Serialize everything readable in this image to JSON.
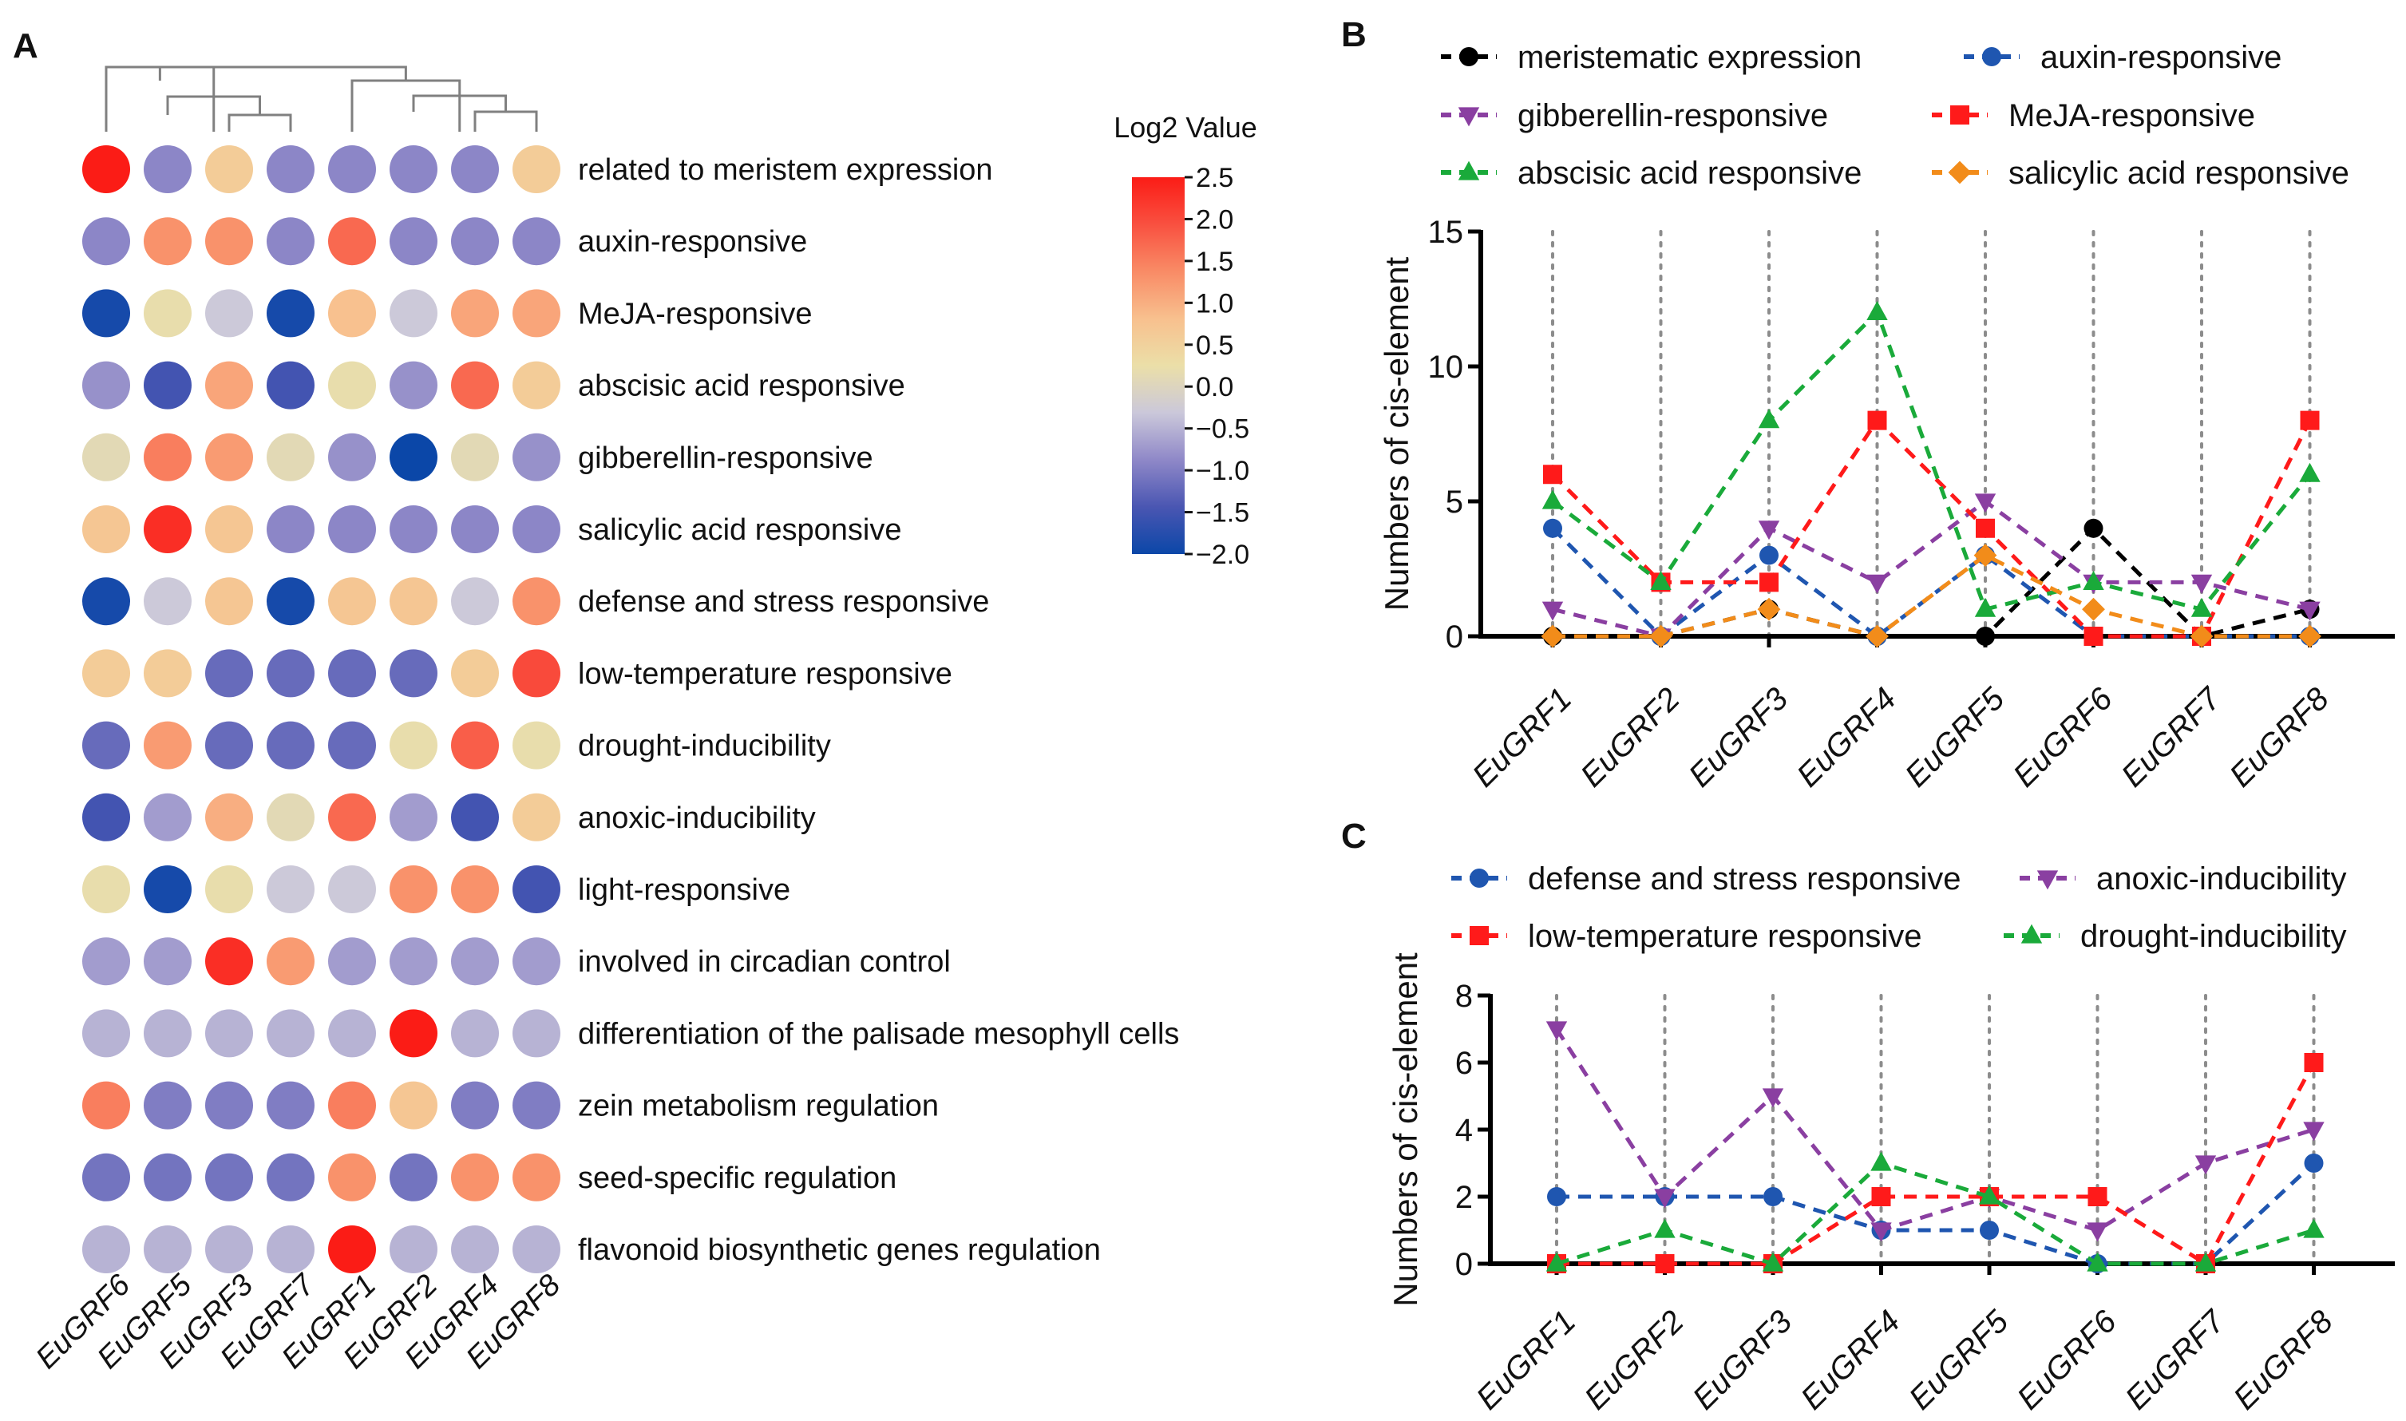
{
  "panels": {
    "a": "A",
    "b": "B",
    "c": "C"
  },
  "chart_data": [
    {
      "type": "heatmap",
      "title": "",
      "columns": [
        "EuGRF6",
        "EuGRF5",
        "EuGRF3",
        "EuGRF7",
        "EuGRF1",
        "EuGRF2",
        "EuGRF4",
        "EuGRF8"
      ],
      "rows": [
        "related to meristem expression",
        "auxin-responsive",
        "MeJA-responsive",
        "abscisic acid responsive",
        "gibberellin-responsive",
        "salicylic acid responsive",
        "defense and stress responsive",
        "low-temperature responsive",
        "drought-inducibility",
        "anoxic-inducibility",
        "light-responsive",
        "involved in circadian control",
        "differentiation of the palisade mesophyll cells",
        "zein metabolism regulation",
        "seed-specific regulation",
        "flavonoid biosynthetic genes regulation"
      ],
      "values": [
        [
          2.5,
          -0.9,
          0.6,
          -0.9,
          -0.9,
          -0.9,
          -0.9,
          0.6
        ],
        [
          -0.9,
          1.3,
          1.3,
          -0.9,
          1.7,
          -0.9,
          -0.9,
          -0.9
        ],
        [
          -1.9,
          0.2,
          -0.3,
          -1.9,
          0.8,
          -0.3,
          1.1,
          1.1
        ],
        [
          -0.8,
          -1.5,
          1.1,
          -1.5,
          0.2,
          -0.8,
          1.7,
          0.6
        ],
        [
          0.1,
          1.5,
          1.2,
          0.1,
          -0.8,
          -2.0,
          0.1,
          -0.8
        ],
        [
          0.7,
          2.3,
          0.7,
          -0.9,
          -0.9,
          -0.9,
          -0.9,
          -0.9
        ],
        [
          -1.9,
          -0.3,
          0.7,
          -1.9,
          0.7,
          0.7,
          -0.3,
          1.3
        ],
        [
          0.6,
          0.6,
          -1.2,
          -1.2,
          -1.2,
          -1.2,
          0.6,
          2.0
        ],
        [
          -1.2,
          1.2,
          -1.2,
          -1.2,
          -1.2,
          0.2,
          1.8,
          0.2
        ],
        [
          -1.5,
          -0.7,
          1.0,
          0.1,
          1.7,
          -0.7,
          -1.5,
          0.6
        ],
        [
          0.2,
          -1.9,
          0.2,
          -0.3,
          -0.3,
          1.3,
          1.3,
          -1.5
        ],
        [
          -0.7,
          -0.7,
          2.3,
          1.2,
          -0.7,
          -0.7,
          -0.7,
          -0.7
        ],
        [
          -0.5,
          -0.5,
          -0.5,
          -0.5,
          -0.5,
          2.5,
          -0.5,
          -0.5
        ],
        [
          1.5,
          -1.0,
          -1.0,
          -1.0,
          1.5,
          0.7,
          -1.0,
          -1.0
        ],
        [
          -1.1,
          -1.1,
          -1.1,
          -1.1,
          1.3,
          -1.1,
          1.3,
          1.3
        ],
        [
          -0.5,
          -0.5,
          -0.5,
          -0.5,
          2.5,
          -0.5,
          -0.5,
          -0.5
        ]
      ],
      "colorbar": {
        "title": "Log2 Value",
        "min": -2.0,
        "max": 2.5,
        "ticks": [
          "2.5",
          "2.0",
          "1.5",
          "1.0",
          "0.5",
          "0.0",
          "−0.5",
          "−1.0",
          "−1.5",
          "−2.0"
        ],
        "colors": [
          "#0b47a8",
          "#4a56b2",
          "#8f88c8",
          "#cbc8da",
          "#ebdfa8",
          "#f8c08e",
          "#f98b66",
          "#f95040",
          "#fb1c16"
        ]
      },
      "dendrogram": "hierarchical clustering tree over the 8 columns"
    },
    {
      "type": "line",
      "title": "",
      "ylabel": "Numbers of cis-element",
      "xlabel": "",
      "ylim": [
        0,
        15
      ],
      "yticks": [
        0,
        5,
        10,
        15
      ],
      "categories": [
        "EuGRF1",
        "EuGRF2",
        "EuGRF3",
        "EuGRF4",
        "EuGRF5",
        "EuGRF6",
        "EuGRF7",
        "EuGRF8"
      ],
      "series": [
        {
          "name": "meristematic expression",
          "color": "#000000",
          "marker": "circle",
          "values": [
            0,
            0,
            1,
            0,
            0,
            4,
            0,
            1
          ]
        },
        {
          "name": "auxin-responsive",
          "color": "#1f56b0",
          "marker": "circle",
          "values": [
            4,
            0,
            3,
            0,
            3,
            0,
            0,
            0
          ]
        },
        {
          "name": "gibberellin-responsive",
          "color": "#8a3fa1",
          "marker": "triangle-down",
          "values": [
            1,
            0,
            4,
            2,
            5,
            2,
            2,
            1
          ]
        },
        {
          "name": "MeJA-responsive",
          "color": "#ff1a1a",
          "marker": "square",
          "values": [
            6,
            2,
            2,
            8,
            4,
            0,
            0,
            8
          ]
        },
        {
          "name": "abscisic acid responsive",
          "color": "#1aaa3a",
          "marker": "triangle-up",
          "values": [
            5,
            2,
            8,
            12,
            1,
            2,
            1,
            6
          ]
        },
        {
          "name": "salicylic acid responsive",
          "color": "#f28c1a",
          "marker": "diamond",
          "values": [
            0,
            0,
            1,
            0,
            3,
            1,
            0,
            0
          ]
        }
      ],
      "legend": "top, two columns"
    },
    {
      "type": "line",
      "title": "",
      "ylabel": "Numbers of cis-element",
      "xlabel": "",
      "ylim": [
        0,
        8
      ],
      "yticks": [
        0,
        2,
        4,
        6,
        8
      ],
      "categories": [
        "EuGRF1",
        "EuGRF2",
        "EuGRF3",
        "EuGRF4",
        "EuGRF5",
        "EuGRF6",
        "EuGRF7",
        "EuGRF8"
      ],
      "series": [
        {
          "name": "defense and stress responsive",
          "color": "#1f56b0",
          "marker": "circle",
          "values": [
            2,
            2,
            2,
            1,
            1,
            0,
            0,
            3
          ]
        },
        {
          "name": "anoxic-inducibility",
          "color": "#8a3fa1",
          "marker": "triangle-down",
          "values": [
            7,
            2,
            5,
            1,
            2,
            1,
            3,
            4
          ]
        },
        {
          "name": "low-temperature responsive",
          "color": "#ff1a1a",
          "marker": "square",
          "values": [
            0,
            0,
            0,
            2,
            2,
            2,
            0,
            6
          ]
        },
        {
          "name": "drought-inducibility",
          "color": "#1aaa3a",
          "marker": "triangle-up",
          "values": [
            0,
            1,
            0,
            3,
            2,
            0,
            0,
            1
          ]
        }
      ],
      "legend": "top, two columns"
    }
  ]
}
